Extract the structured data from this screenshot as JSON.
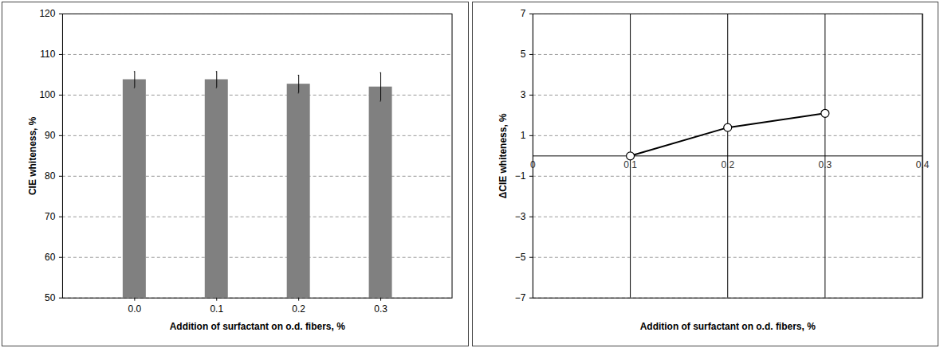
{
  "chart_data": [
    {
      "type": "bar",
      "xlabel": "Addition of surfactant on o.d. fibers, %",
      "ylabel": "CIE whiteness, %",
      "categories": [
        "0.0",
        "0.1",
        "0.2",
        "0.3"
      ],
      "values": [
        103.8,
        103.8,
        102.7,
        102.0
      ],
      "errors": [
        2.0,
        2.0,
        2.2,
        3.5
      ],
      "color": "#808080",
      "ylim": [
        50,
        120
      ],
      "yticks": [
        50,
        60,
        70,
        80,
        90,
        100,
        110,
        120
      ],
      "grid": true
    },
    {
      "type": "line",
      "xlabel": "Addition of surfactant on o.d. fibers, %",
      "ylabel": "ΔCIE whiteness, %",
      "x": [
        0.1,
        0.2,
        0.3
      ],
      "values": [
        0,
        1.4,
        2.1
      ],
      "color": "#000000",
      "marker": "circle",
      "xlim": [
        0,
        0.4
      ],
      "xticks": [
        0,
        0.1,
        0.2,
        0.3,
        0.4
      ],
      "ylim": [
        -7,
        7
      ],
      "yticks": [
        -7,
        -5,
        -3,
        -1,
        1,
        3,
        5,
        7
      ],
      "grid": true
    }
  ]
}
